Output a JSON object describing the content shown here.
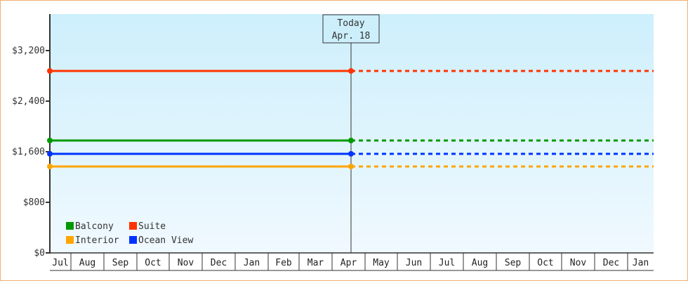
{
  "chart_data": {
    "type": "line",
    "ylim": [
      0,
      3778
    ],
    "y_ticks": [
      {
        "value": 0,
        "label": "$0"
      },
      {
        "value": 800,
        "label": "$800"
      },
      {
        "value": 1600,
        "label": "$1,600"
      },
      {
        "value": 2400,
        "label": "$2,400"
      },
      {
        "value": 3200,
        "label": "$3,200"
      }
    ],
    "x_ticks": [
      "Jul",
      "Aug",
      "Sep",
      "Oct",
      "Nov",
      "Dec",
      "Jan",
      "Feb",
      "Mar",
      "Apr",
      "May",
      "Jun",
      "Jul",
      "Aug",
      "Sep",
      "Oct",
      "Nov",
      "Dec",
      "Jan"
    ],
    "today": {
      "title": "Today",
      "date": "Apr. 18"
    },
    "grid": false,
    "legend_position": "bottom-left",
    "series": [
      {
        "name": "Balcony",
        "color": "#009900",
        "value": 1778
      },
      {
        "name": "Suite",
        "color": "#ff3300",
        "value": 2878
      },
      {
        "name": "Interior",
        "color": "#ffa500",
        "value": 1367
      },
      {
        "name": "Ocean View",
        "color": "#0033ff",
        "value": 1567
      }
    ],
    "note": ""
  }
}
